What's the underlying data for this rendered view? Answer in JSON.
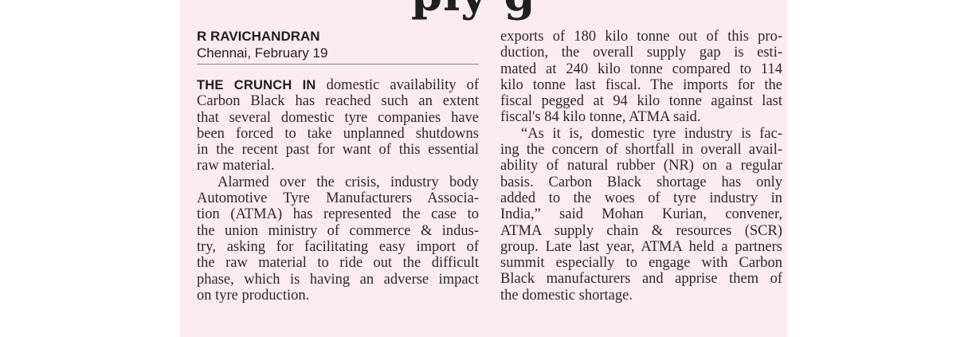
{
  "headline_fragment": "ply g",
  "byline": {
    "name": "R RAVICHANDRAN",
    "dateline": "Chennai, February 19"
  },
  "left_column": {
    "lead_in": "THE CRUNCH IN",
    "lines": [
      "domestic availability of",
      "Carbon Black has reached such an extent",
      "that several domestic tyre companies have",
      "been forced to take unplanned shutdowns",
      "in the recent past for want of this essential",
      "raw material.",
      "Alarmed over the crisis, industry body",
      "Automotive Tyre Manufacturers Associa-",
      "tion (ATMA) has represented the case to",
      "the union ministry of commerce & indus-",
      "try, asking for facilitating easy import of",
      "the raw material to ride out the difficult",
      "phase, which is having an adverse impact",
      "on tyre production."
    ]
  },
  "right_column": {
    "lines": [
      "exports of 180 kilo tonne out of this pro-",
      "duction, the overall supply gap is esti-",
      "mated at 240 kilo tonne compared to 114",
      "kilo tonne last fiscal. The imports for the",
      "fiscal pegged at 94 kilo tonne against last",
      "fiscal's 84 kilo tonne, ATMA said.",
      "“As it is, domestic tyre industry is fac-",
      "ing the concern of shortfall in overall avail-",
      "ability of natural rubber (NR) on a regular",
      "basis. Carbon Black shortage has only",
      "added to the woes of tyre industry in",
      "India,” said Mohan Kurian, convener,",
      "ATMA supply chain & resources (SCR)",
      "group. Late last year, ATMA held a partners",
      "summit especially to engage with Carbon",
      "Black manufacturers and apprise them of",
      "the domestic shortage."
    ]
  }
}
